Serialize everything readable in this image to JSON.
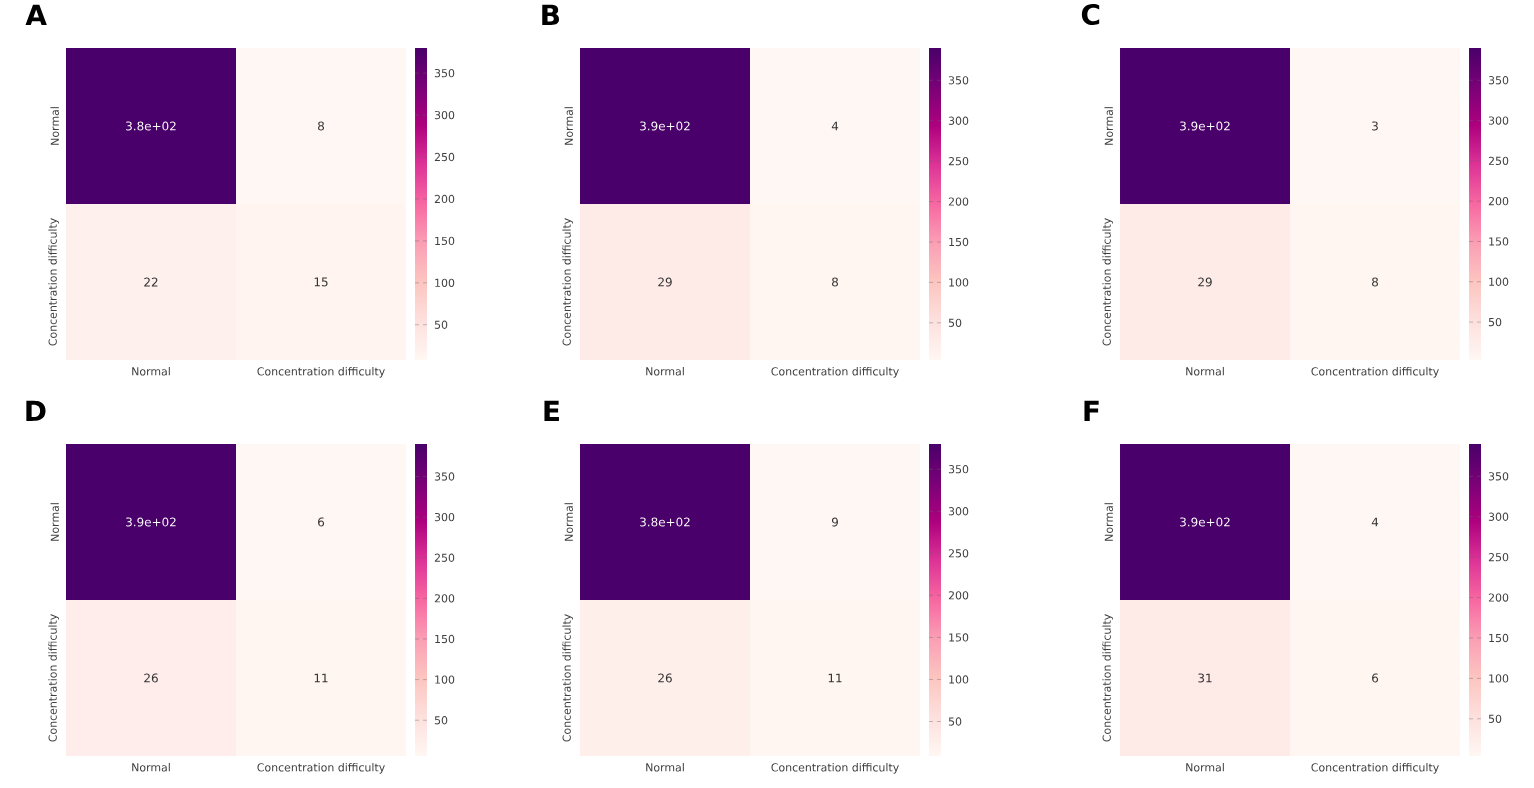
{
  "chart_data": [
    {
      "type": "heatmap",
      "title": "A",
      "categories": [
        "Normal",
        "Concentration difficulty"
      ],
      "y_categories": [
        "Normal",
        "Concentration difficulty"
      ],
      "cells": [
        [
          380,
          8
        ],
        [
          22,
          15
        ]
      ],
      "cell_labels": [
        [
          "3.8e+02",
          "8"
        ],
        [
          "22",
          "15"
        ]
      ],
      "clim": [
        8,
        380
      ],
      "cticks": [
        50,
        100,
        150,
        200,
        250,
        300,
        350
      ]
    },
    {
      "type": "heatmap",
      "title": "B",
      "categories": [
        "Normal",
        "Concentration difficulty"
      ],
      "y_categories": [
        "Normal",
        "Concentration difficulty"
      ],
      "cells": [
        [
          390,
          4
        ],
        [
          29,
          8
        ]
      ],
      "cell_labels": [
        [
          "3.9e+02",
          "4"
        ],
        [
          "29",
          "8"
        ]
      ],
      "clim": [
        4,
        390
      ],
      "cticks": [
        50,
        100,
        150,
        200,
        250,
        300,
        350
      ]
    },
    {
      "type": "heatmap",
      "title": "C",
      "categories": [
        "Normal",
        "Concentration difficulty"
      ],
      "y_categories": [
        "Normal",
        "Concentration difficulty"
      ],
      "cells": [
        [
          390,
          3
        ],
        [
          29,
          8
        ]
      ],
      "cell_labels": [
        [
          "3.9e+02",
          "3"
        ],
        [
          "29",
          "8"
        ]
      ],
      "clim": [
        3,
        390
      ],
      "cticks": [
        50,
        100,
        150,
        200,
        250,
        300,
        350
      ]
    },
    {
      "type": "heatmap",
      "title": "D",
      "categories": [
        "Normal",
        "Concentration difficulty"
      ],
      "y_categories": [
        "Normal",
        "Concentration difficulty"
      ],
      "cells": [
        [
          390,
          6
        ],
        [
          26,
          11
        ]
      ],
      "cell_labels": [
        [
          "3.9e+02",
          "6"
        ],
        [
          "26",
          "11"
        ]
      ],
      "clim": [
        6,
        390
      ],
      "cticks": [
        50,
        100,
        150,
        200,
        250,
        300,
        350
      ]
    },
    {
      "type": "heatmap",
      "title": "E",
      "categories": [
        "Normal",
        "Concentration difficulty"
      ],
      "y_categories": [
        "Normal",
        "Concentration difficulty"
      ],
      "cells": [
        [
          380,
          9
        ],
        [
          26,
          11
        ]
      ],
      "cell_labels": [
        [
          "3.8e+02",
          "9"
        ],
        [
          "26",
          "11"
        ]
      ],
      "clim": [
        9,
        380
      ],
      "cticks": [
        50,
        100,
        150,
        200,
        250,
        300,
        350
      ]
    },
    {
      "type": "heatmap",
      "title": "F",
      "categories": [
        "Normal",
        "Concentration difficulty"
      ],
      "y_categories": [
        "Normal",
        "Concentration difficulty"
      ],
      "cells": [
        [
          390,
          4
        ],
        [
          31,
          6
        ]
      ],
      "cell_labels": [
        [
          "3.9e+02",
          "4"
        ],
        [
          "31",
          "6"
        ]
      ],
      "clim": [
        4,
        390
      ],
      "cticks": [
        50,
        100,
        150,
        200,
        250,
        300,
        350
      ]
    }
  ]
}
